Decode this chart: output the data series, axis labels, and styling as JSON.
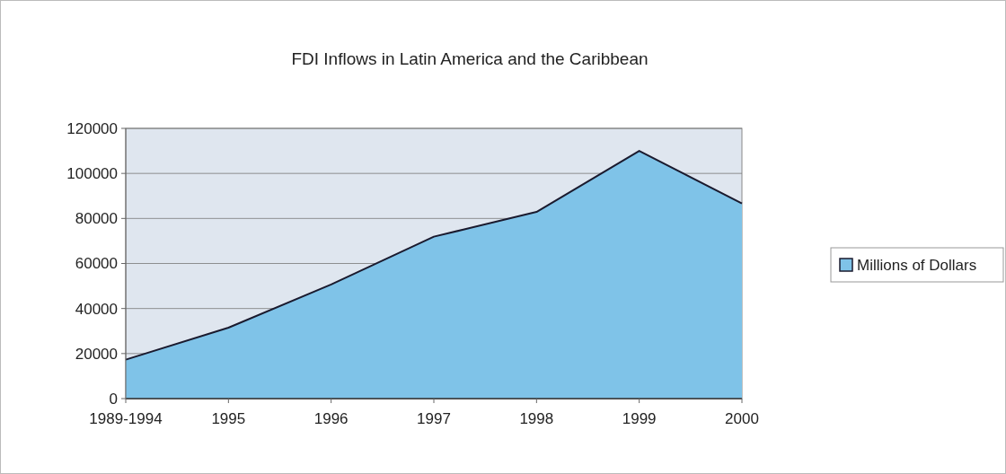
{
  "chart_data": {
    "type": "area",
    "title": "FDI Inflows in Latin America and the Caribbean",
    "categories": [
      "1989-1994",
      "1995",
      "1996",
      "1997",
      "1998",
      "1999",
      "2000"
    ],
    "series": [
      {
        "name": "Millions of Dollars",
        "color": "#7fc3e8",
        "values": [
          17300,
          31500,
          50700,
          71900,
          82900,
          110000,
          86700
        ]
      }
    ],
    "ylim": [
      0,
      120000
    ],
    "yticks": [
      0,
      20000,
      40000,
      60000,
      80000,
      100000,
      120000
    ],
    "grid": "y",
    "legend": "right"
  }
}
